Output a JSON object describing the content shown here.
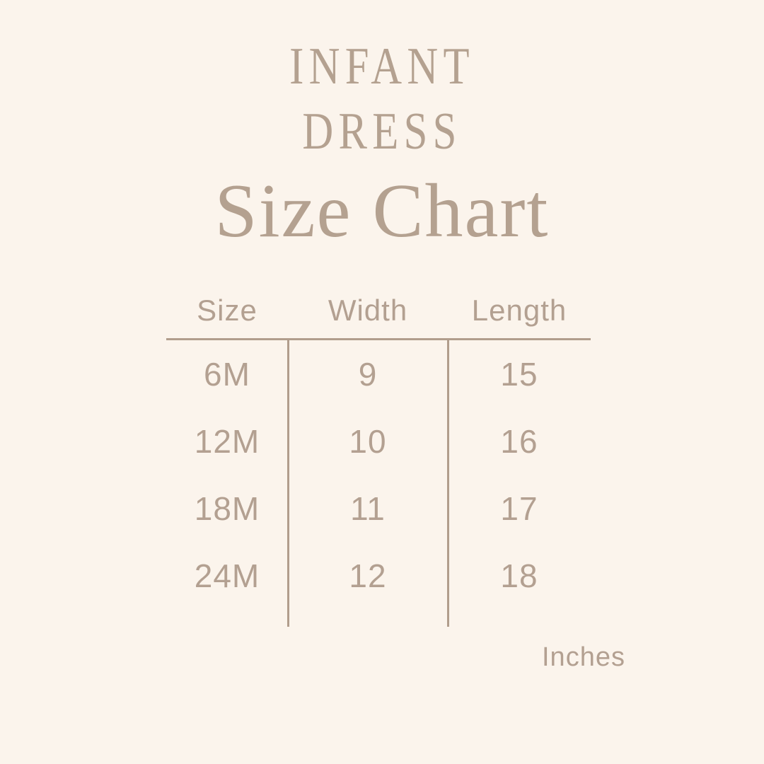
{
  "colors": {
    "background": "#fbf4ec",
    "text": "#b3a091",
    "rule_lines": "#b19d8c"
  },
  "header": {
    "line1": "INFANT",
    "line2": "DRESS",
    "title": "Size Chart"
  },
  "table": {
    "columns": [
      "Size",
      "Width",
      "Length"
    ],
    "rows": [
      {
        "size": "6M",
        "width": "9",
        "length": "15"
      },
      {
        "size": "12M",
        "width": "10",
        "length": "16"
      },
      {
        "size": "18M",
        "width": "11",
        "length": "17"
      },
      {
        "size": "24M",
        "width": "12",
        "length": "18"
      }
    ],
    "unit_label": "Inches"
  },
  "chart_data": {
    "type": "table",
    "title": "Size Chart",
    "subtitle": "INFANT DRESS",
    "columns": [
      "Size",
      "Width",
      "Length"
    ],
    "rows": [
      [
        "6M",
        9,
        15
      ],
      [
        "12M",
        10,
        16
      ],
      [
        "18M",
        11,
        17
      ],
      [
        "24M",
        12,
        18
      ]
    ],
    "units": "Inches"
  }
}
